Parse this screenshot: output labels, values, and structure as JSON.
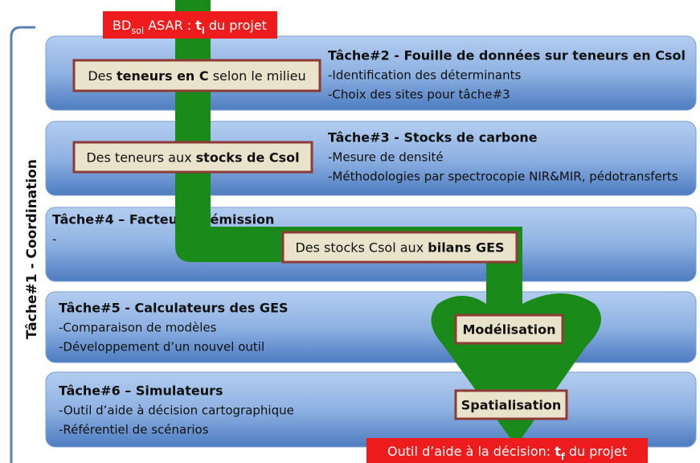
{
  "top_box": [
    {
      "text": "BD"
    },
    {
      "text": "sol",
      "sub": true
    },
    {
      "text": " ASAR : "
    },
    {
      "text": "t",
      "bold": true
    },
    {
      "text": "i",
      "sub": true,
      "bold": true
    },
    {
      "text": " du projet"
    }
  ],
  "side_label": "Tâche#1 - Coordination",
  "tasks": [
    {
      "title": "Tâche#2 - Fouille de données sur teneurs en Csol",
      "items": [
        "-Identification des déterminants",
        "-Choix des sites pour tâche#3"
      ]
    },
    {
      "title": "Tâche#3 - Stocks de carbone",
      "items": [
        "-Mesure de densité",
        "-Méthodologies par spectrocopie NIR&MIR, pédotransferts"
      ]
    },
    {
      "title": "Tâche#4 – Facteurs d’émission",
      "items": [
        "-"
      ]
    },
    {
      "title": "Tâche#5 - Calculateurs des GES",
      "items": [
        "-Comparaison de modèles",
        "-Développement d’un nouvel outil"
      ]
    },
    {
      "title": "Tâche#6 – Simulateurs",
      "items": [
        "-Outil d’aide à décision cartographique",
        "-Référentiel de scénarios"
      ]
    }
  ],
  "flow_labels": [
    [
      {
        "text": "Des "
      },
      {
        "text": "teneurs en C",
        "bold": true
      },
      {
        "text": " selon le milieu"
      }
    ],
    [
      {
        "text": "Des teneurs aux "
      },
      {
        "text": "stocks de Csol",
        "bold": true
      }
    ],
    [
      {
        "text": "Des stocks Csol aux "
      },
      {
        "text": "bilans GES",
        "bold": true
      }
    ],
    [
      {
        "text": "Modélisation",
        "bold": true
      }
    ],
    [
      {
        "text": "Spatialisation",
        "bold": true
      }
    ]
  ],
  "bottom_box": [
    {
      "text": "Outil d’aide à la décision: "
    },
    {
      "text": "t",
      "bold": true
    },
    {
      "text": "f",
      "sub": true,
      "bold": true
    },
    {
      "text": " du projet"
    }
  ]
}
